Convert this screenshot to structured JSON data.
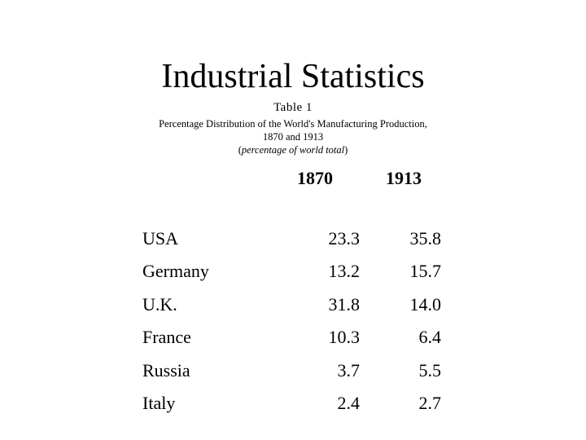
{
  "slide": {
    "title": "Industrial Statistics",
    "table_label": "Table 1",
    "description_line1": "Percentage Distribution of the World's Manufacturing Production,",
    "description_line2": "1870 and 1913",
    "units_open": "(",
    "units": "percentage of world total",
    "units_close": ")"
  },
  "table": {
    "columns": [
      "1870",
      "1913"
    ],
    "rows": [
      {
        "country": "USA",
        "v1870": "23.3",
        "v1913": "35.8"
      },
      {
        "country": "Germany",
        "v1870": "13.2",
        "v1913": "15.7"
      },
      {
        "country": "U.K.",
        "v1870": "31.8",
        "v1913": "14.0"
      },
      {
        "country": "France",
        "v1870": "10.3",
        "v1913": "6.4"
      },
      {
        "country": "Russia",
        "v1870": "3.7",
        "v1913": "5.5"
      },
      {
        "country": "Italy",
        "v1870": "2.4",
        "v1913": "2.7"
      }
    ]
  }
}
